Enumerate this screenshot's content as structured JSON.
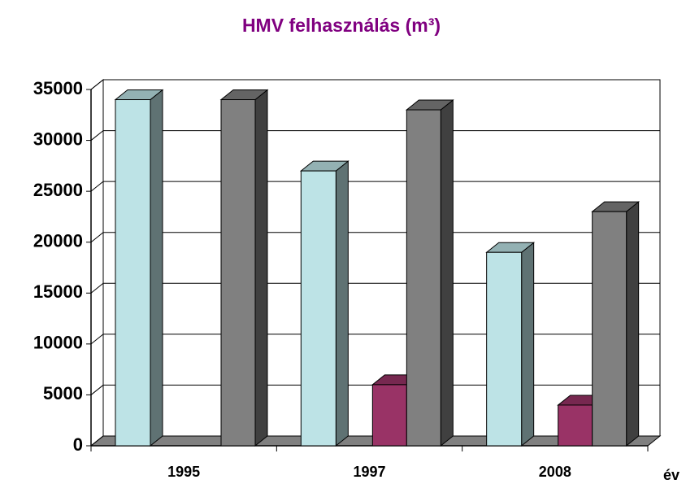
{
  "chart_data": {
    "type": "bar3d",
    "title": "HMV felhasználás (m³)",
    "x_label": "év",
    "categories": [
      "1995",
      "1997",
      "2008"
    ],
    "series": [
      {
        "color": "#bde3e6",
        "values": [
          34000,
          27000,
          19000
        ]
      },
      {
        "color": "#993366",
        "values": [
          0,
          6000,
          4000
        ]
      },
      {
        "color": "#808080",
        "values": [
          34000,
          33000,
          23000
        ]
      }
    ],
    "ylim": [
      0,
      35000
    ],
    "yticks": [
      0,
      5000,
      10000,
      15000,
      20000,
      25000,
      30000,
      35000
    ],
    "grid": true
  }
}
